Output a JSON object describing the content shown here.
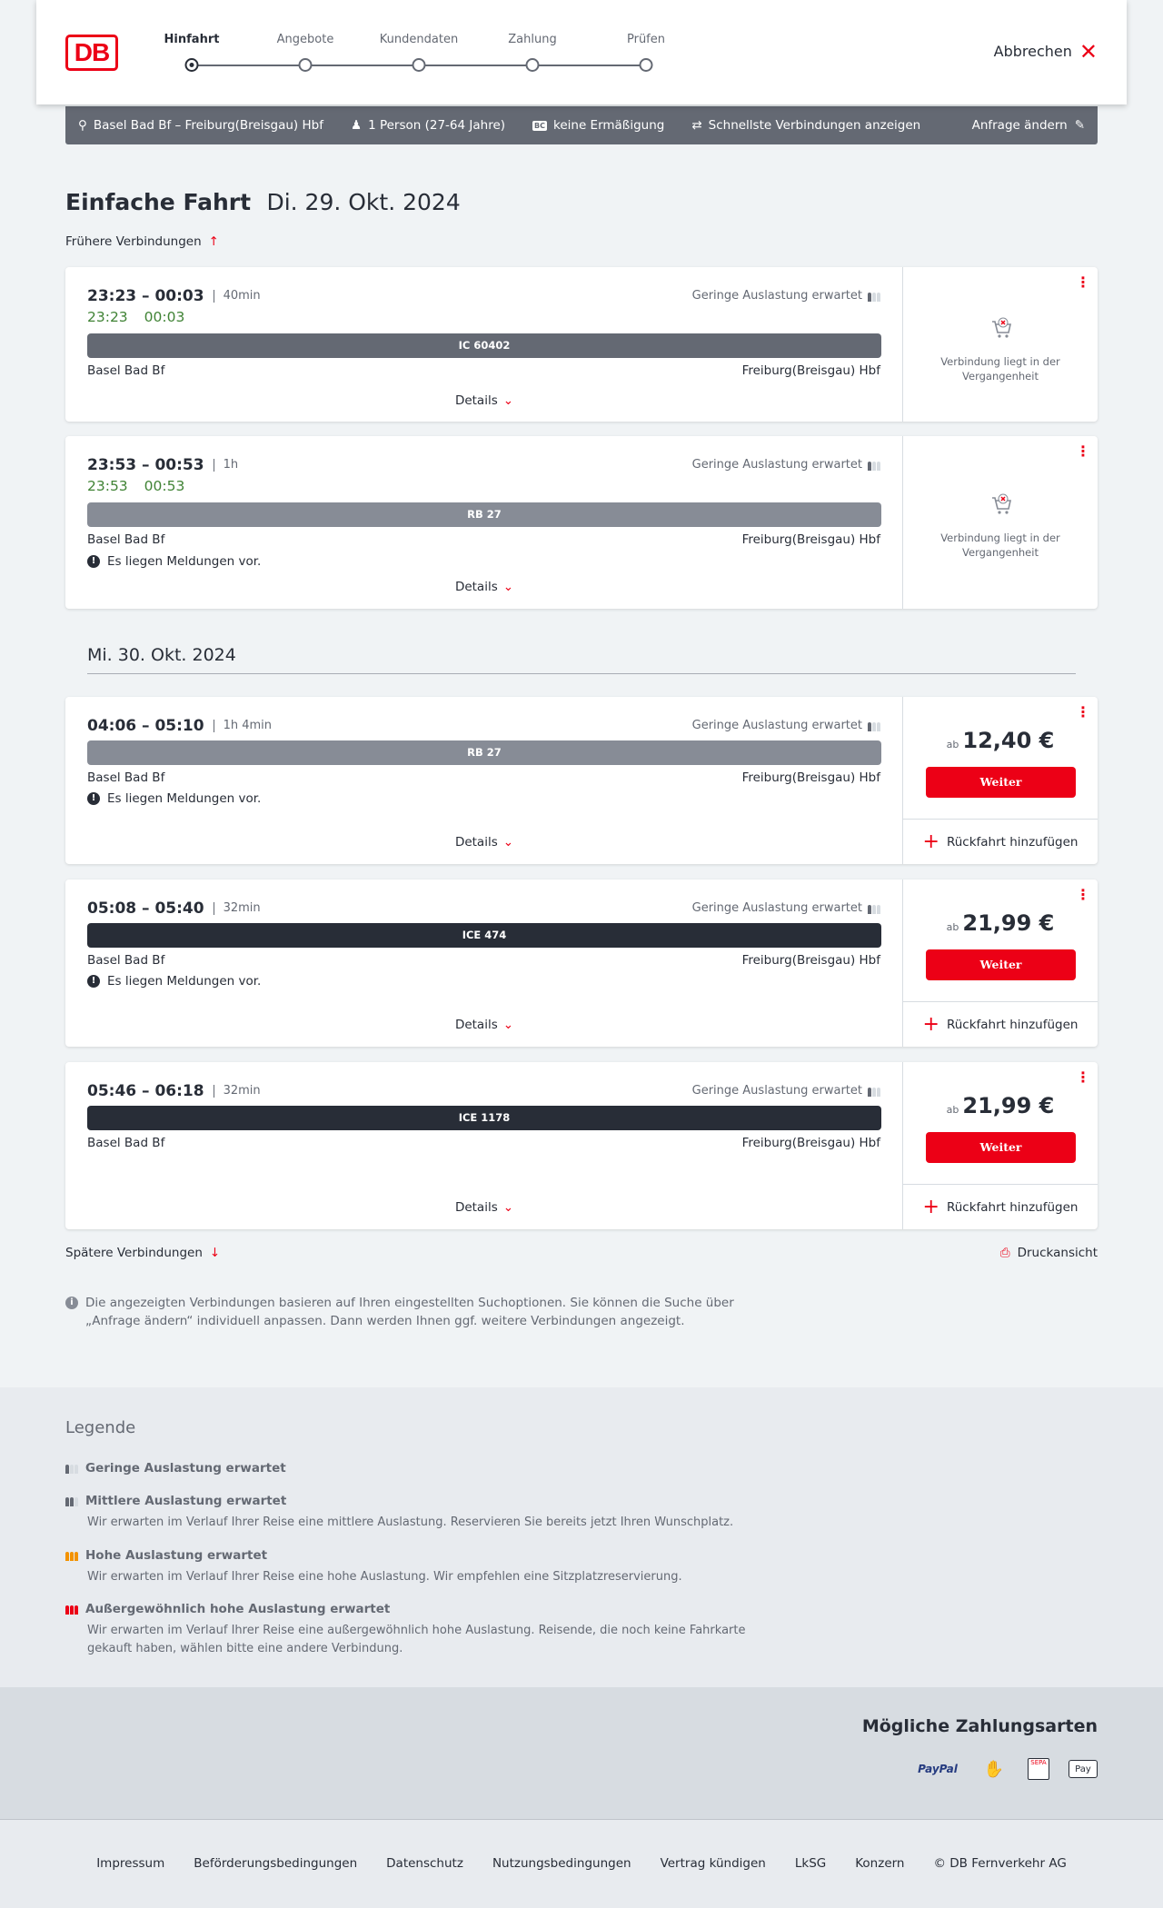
{
  "header": {
    "logo": "DB",
    "steps": [
      {
        "label": "Hinfahrt",
        "active": true
      },
      {
        "label": "Angebote"
      },
      {
        "label": "Kundendaten"
      },
      {
        "label": "Zahlung"
      },
      {
        "label": "Prüfen"
      }
    ],
    "cancel": "Abbrechen"
  },
  "search": {
    "route": "Basel Bad Bf – Freiburg(Breisgau) Hbf",
    "passengers": "1 Person (27-64 Jahre)",
    "discount_icon": "BC",
    "discount": "keine Ermäßigung",
    "option": "Schnellste Verbindungen anzeigen",
    "change": "Anfrage ändern"
  },
  "title": {
    "main": "Einfache Fahrt",
    "date": "Di. 29. Okt. 2024"
  },
  "earlier": "Frühere Verbindungen",
  "later": "Spätere Verbindungen",
  "print": "Druckansicht",
  "date2": "Mi. 30. Okt. 2024",
  "colors": {
    "accent": "#ec0016",
    "realtime": "#408335",
    "bar_dark": "#282d37",
    "bar_mid": "#646973",
    "bar_light": "#878c96"
  },
  "connections": [
    {
      "times": "23:23 – 00:03",
      "duration": "40min",
      "rt_dep": "23:23",
      "rt_arr": "00:03",
      "load": "Geringe Auslastung erwartet",
      "train": "IC 60402",
      "from": "Basel Bad Bf",
      "to": "Freiburg(Breisgau) Hbf",
      "details": "Details",
      "past": "Verbindung liegt in der Vergangenheit"
    },
    {
      "times": "23:53 – 00:53",
      "duration": "1h",
      "rt_dep": "23:53",
      "rt_arr": "00:53",
      "load": "Geringe Auslastung erwartet",
      "train": "RB 27",
      "from": "Basel Bad Bf",
      "to": "Freiburg(Breisgau) Hbf",
      "message": "Es liegen Meldungen vor.",
      "details": "Details",
      "past": "Verbindung liegt in der Vergangenheit"
    },
    {
      "times": "04:06 – 05:10",
      "duration": "1h 4min",
      "load": "Geringe Auslastung erwartet",
      "train": "RB 27",
      "from": "Basel Bad Bf",
      "to": "Freiburg(Breisgau) Hbf",
      "message": "Es liegen Meldungen vor.",
      "details": "Details",
      "price_prefix": "ab",
      "price": "12,40 €",
      "button": "Weiter",
      "return": "Rückfahrt hinzufügen"
    },
    {
      "times": "05:08 – 05:40",
      "duration": "32min",
      "load": "Geringe Auslastung erwartet",
      "train": "ICE 474",
      "from": "Basel Bad Bf",
      "to": "Freiburg(Breisgau) Hbf",
      "message": "Es liegen Meldungen vor.",
      "details": "Details",
      "price_prefix": "ab",
      "price": "21,99 €",
      "button": "Weiter",
      "return": "Rückfahrt hinzufügen"
    },
    {
      "times": "05:46 – 06:18",
      "duration": "32min",
      "load": "Geringe Auslastung erwartet",
      "train": "ICE 1178",
      "from": "Basel Bad Bf",
      "to": "Freiburg(Breisgau) Hbf",
      "details": "Details",
      "price_prefix": "ab",
      "price": "21,99 €",
      "button": "Weiter",
      "return": "Rückfahrt hinzufügen"
    }
  ],
  "info": "Die angezeigten Verbindungen basieren auf Ihren eingestellten Suchoptionen. Sie können die Suche über „Anfrage ändern“ individuell anpassen. Dann werden Ihnen ggf. weitere Verbindungen angezeigt.",
  "legend": {
    "title": "Legende",
    "items": [
      {
        "title": "Geringe Auslastung erwartet"
      },
      {
        "title": "Mittlere Auslastung erwartet",
        "text": "Wir erwarten im Verlauf Ihrer Reise eine mittlere Auslastung. Reservieren Sie bereits jetzt Ihren Wunschplatz."
      },
      {
        "title": "Hohe Auslastung erwartet",
        "text": "Wir erwarten im Verlauf Ihrer Reise eine hohe Auslastung. Wir empfehlen eine Sitzplatzreservierung."
      },
      {
        "title": "Außergewöhnlich hohe Auslastung erwartet",
        "text": "Wir erwarten im Verlauf Ihrer Reise eine außergewöhnlich hohe Auslastung. Reisende, die noch keine Fahrkarte gekauft haben, wählen bitte eine andere Verbindung."
      }
    ]
  },
  "payment": {
    "title": "Mögliche Zahlungsarten",
    "methods": [
      "PayPal",
      "Kontaktlos",
      "SEPA",
      "Pay"
    ]
  },
  "footer": [
    "Impressum",
    "Beförderungsbedingungen",
    "Datenschutz",
    "Nutzungsbedingungen",
    "Vertrag kündigen",
    "LkSG",
    "Konzern",
    "© DB Fernverkehr AG"
  ]
}
